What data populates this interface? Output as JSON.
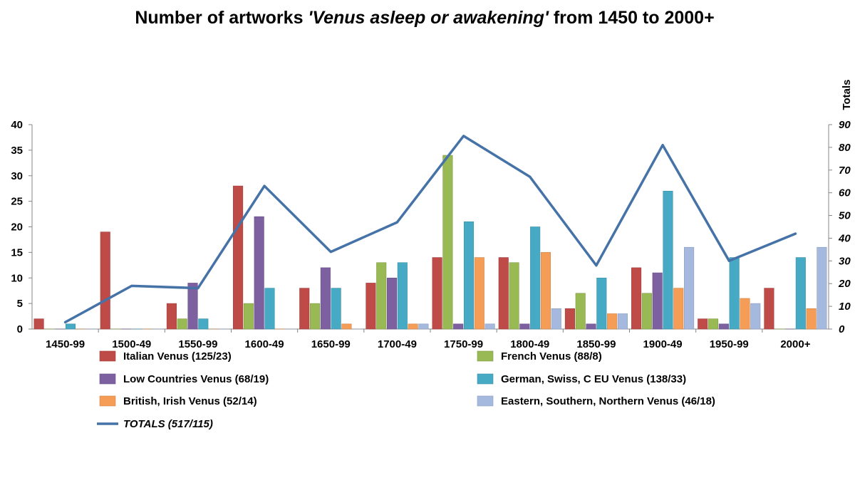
{
  "chart_data": {
    "type": "bar",
    "title": {
      "prefix": "Number of artworks ",
      "italic": "'Venus asleep or awakening'",
      "suffix": " from 1450 to 2000+"
    },
    "y2label": "Totals",
    "ylim": [
      0,
      40
    ],
    "y2lim": [
      0,
      90
    ],
    "yticks": [
      0,
      5,
      10,
      15,
      20,
      25,
      30,
      35,
      40
    ],
    "y2ticks": [
      0,
      10,
      20,
      30,
      40,
      50,
      60,
      70,
      80,
      90
    ],
    "categories": [
      "1450-99",
      "1500-49",
      "1550-99",
      "1600-49",
      "1650-99",
      "1700-49",
      "1750-99",
      "1800-49",
      "1850-99",
      "1900-49",
      "1950-99",
      "2000+"
    ],
    "series": [
      {
        "name": "Italian Venus (125/23)",
        "color": "#be4b48",
        "values": [
          2,
          19,
          5,
          28,
          8,
          9,
          14,
          14,
          4,
          12,
          2,
          8
        ]
      },
      {
        "name": "French Venus (88/8)",
        "color": "#98b954",
        "values": [
          0,
          0,
          2,
          5,
          5,
          13,
          34,
          13,
          7,
          7,
          2,
          0
        ]
      },
      {
        "name": "Low Countries Venus (68/19)",
        "color": "#7d60a0",
        "values": [
          0,
          0,
          9,
          22,
          12,
          10,
          1,
          1,
          1,
          11,
          1,
          0
        ]
      },
      {
        "name": "German, Swiss, C EU Venus (138/33)",
        "color": "#46aac4",
        "values": [
          1,
          0,
          2,
          8,
          8,
          13,
          21,
          20,
          10,
          27,
          14,
          14
        ]
      },
      {
        "name": "British, Irish Venus (52/14)",
        "color": "#f59d56",
        "values": [
          0,
          0,
          0,
          0,
          1,
          1,
          14,
          15,
          3,
          8,
          6,
          4
        ]
      },
      {
        "name": "Eastern, Southern, Northern Venus (46/18)",
        "color": "#a5b9de",
        "values": [
          0,
          0,
          0,
          0,
          0,
          1,
          1,
          4,
          3,
          16,
          5,
          16
        ]
      }
    ],
    "line": {
      "name": "TOTALS (517/115)",
      "color": "#4572a7",
      "axis": "right",
      "values": [
        3,
        19,
        18,
        63,
        34,
        47,
        85,
        67,
        28,
        81,
        30,
        42
      ]
    },
    "grid": false,
    "legend_position": "bottom"
  }
}
